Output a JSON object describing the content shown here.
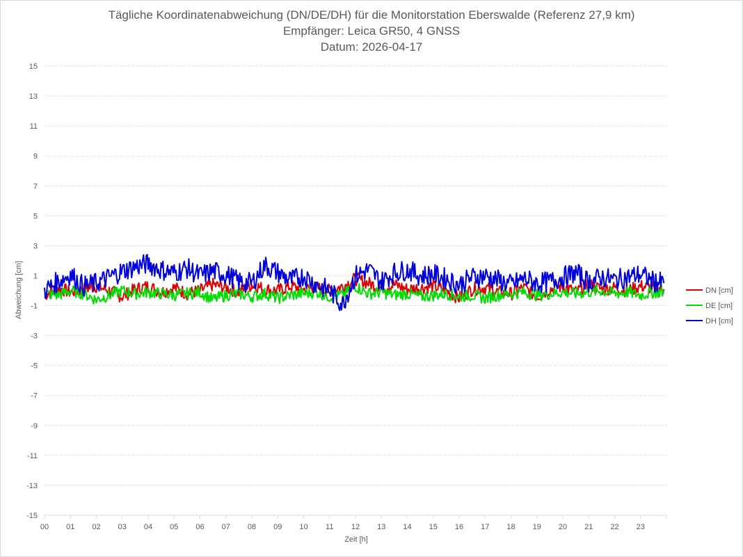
{
  "chart_data": {
    "type": "line",
    "title": "Tägliche Koordinatenabweichung (DN/DE/DH) für die Monitorstation Eberswalde (Referenz 27,9 km)",
    "subtitle": "Empfänger: Leica GR50, 4 GNSS",
    "date_line": "Datum: 2026-04-17",
    "xlabel": "Zeit [h]",
    "ylabel": "Abweichung [cm]",
    "xlim": [
      0,
      24
    ],
    "ylim": [
      -15,
      15
    ],
    "x_ticks": [
      "00",
      "01",
      "02",
      "03",
      "04",
      "05",
      "06",
      "07",
      "08",
      "09",
      "10",
      "11",
      "12",
      "13",
      "14",
      "15",
      "16",
      "17",
      "18",
      "19",
      "20",
      "21",
      "22",
      "23"
    ],
    "y_ticks": [
      15,
      13,
      11,
      9,
      7,
      5,
      3,
      1,
      -1,
      -3,
      -5,
      -7,
      -9,
      -11,
      -13,
      -15
    ],
    "grid": true,
    "legend_position": "right",
    "series": [
      {
        "name": "DN [cm]",
        "color": "#e00000",
        "x": [
          0,
          0.5,
          1,
          1.5,
          2,
          2.5,
          3,
          3.5,
          4,
          4.5,
          5,
          5.5,
          6,
          6.5,
          7,
          7.5,
          8,
          8.5,
          9,
          9.5,
          10,
          10.5,
          11,
          11.5,
          12,
          12.5,
          13,
          13.5,
          14,
          14.5,
          15,
          15.5,
          16,
          16.5,
          17,
          17.5,
          18,
          18.5,
          19,
          19.5,
          20,
          20.5,
          21,
          21.5,
          22,
          22.5,
          23,
          23.5,
          23.9
        ],
        "y": [
          -0.3,
          0.2,
          -0.1,
          0.1,
          0.3,
          0.0,
          -0.4,
          0.1,
          0.3,
          -0.1,
          0.2,
          -0.2,
          0.0,
          0.4,
          0.2,
          -0.1,
          0.4,
          0.1,
          0.0,
          0.3,
          0.1,
          0.2,
          0.0,
          0.3,
          0.8,
          0.5,
          0.2,
          0.4,
          0.1,
          0.2,
          0.3,
          0.0,
          -0.5,
          0.1,
          0.2,
          -0.1,
          -0.2,
          0.2,
          -0.4,
          0.1,
          0.3,
          -0.1,
          0.4,
          0.1,
          0.2,
          0.0,
          0.3,
          0.2,
          0.1
        ]
      },
      {
        "name": "DE [cm]",
        "color": "#00dd00",
        "x": [
          0,
          0.5,
          1,
          1.5,
          2,
          2.5,
          3,
          3.5,
          4,
          4.5,
          5,
          5.5,
          6,
          6.5,
          7,
          7.5,
          8,
          8.5,
          9,
          9.5,
          10,
          10.5,
          11,
          11.5,
          12,
          12.5,
          13,
          13.5,
          14,
          14.5,
          15,
          15.5,
          16,
          16.5,
          17,
          17.5,
          18,
          18.5,
          19,
          19.5,
          20,
          20.5,
          21,
          21.5,
          22,
          22.5,
          23,
          23.5,
          23.9
        ],
        "y": [
          -0.2,
          -0.3,
          0.0,
          -0.2,
          -0.6,
          -0.3,
          0.0,
          -0.2,
          -0.1,
          -0.2,
          -0.3,
          -0.2,
          -0.1,
          -0.6,
          -0.3,
          -0.2,
          -0.4,
          -0.2,
          -0.5,
          -0.3,
          -0.2,
          -0.1,
          -0.4,
          -0.3,
          0.3,
          -0.2,
          -0.1,
          -0.3,
          -0.2,
          -0.4,
          -0.3,
          -0.2,
          -0.4,
          -0.3,
          -0.5,
          -0.3,
          -0.2,
          -0.1,
          -0.3,
          -0.2,
          -0.1,
          -0.2,
          -0.1,
          0.0,
          -0.2,
          -0.1,
          -0.3,
          -0.1,
          -0.1
        ]
      },
      {
        "name": "DH [cm]",
        "color": "#0000dd",
        "x": [
          0,
          0.5,
          1,
          1.5,
          2,
          2.5,
          3,
          3.5,
          4,
          4.5,
          5,
          5.5,
          6,
          6.5,
          7,
          7.5,
          8,
          8.5,
          9,
          9.5,
          10,
          10.5,
          11,
          11.5,
          12,
          12.5,
          13,
          13.5,
          14,
          14.5,
          15,
          15.5,
          16,
          16.5,
          17,
          17.5,
          18,
          18.5,
          19,
          19.5,
          20,
          20.5,
          21,
          21.5,
          22,
          22.5,
          23,
          23.5,
          23.9
        ],
        "y": [
          0.0,
          0.6,
          1.1,
          0.3,
          0.5,
          0.9,
          1.3,
          1.6,
          1.8,
          1.4,
          1.2,
          1.5,
          1.0,
          1.3,
          1.1,
          0.6,
          0.5,
          1.7,
          1.2,
          0.7,
          1.0,
          0.4,
          0.0,
          -0.9,
          1.0,
          1.4,
          0.6,
          1.2,
          1.4,
          1.0,
          1.1,
          0.8,
          0.4,
          0.9,
          1.0,
          0.7,
          0.4,
          0.8,
          0.5,
          0.6,
          0.9,
          1.2,
          0.6,
          0.9,
          0.7,
          0.9,
          1.1,
          0.6,
          0.5
        ]
      }
    ]
  }
}
